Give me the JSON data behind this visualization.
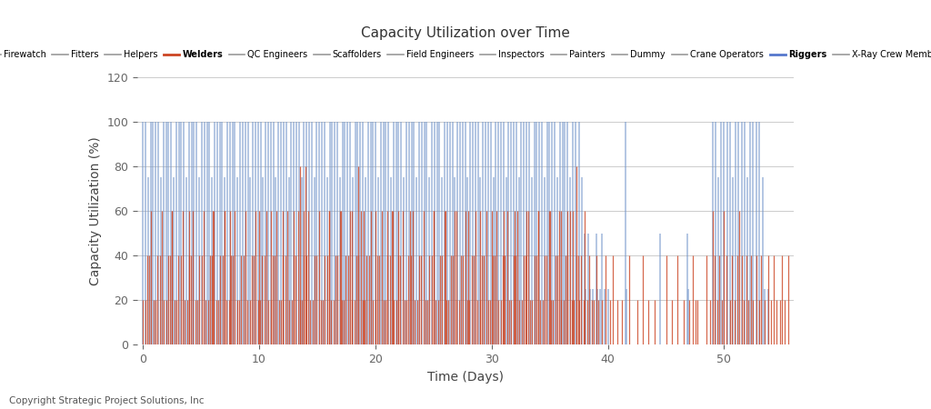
{
  "title": "Capacity Utilization over Time",
  "xlabel": "Time (Days)",
  "ylabel": "Capacity Utilization (%)",
  "ylim": [
    0,
    120
  ],
  "xlim": [
    -0.5,
    56
  ],
  "yticks": [
    0,
    20,
    40,
    60,
    80,
    100,
    120
  ],
  "copyright": "Copyright Strategic Project Solutions, Inc",
  "legend_entries": [
    {
      "label": "Firewatch",
      "color": "#999999",
      "bold": false
    },
    {
      "label": "Fitters",
      "color": "#999999",
      "bold": false
    },
    {
      "label": "Helpers",
      "color": "#999999",
      "bold": false
    },
    {
      "label": "Welders",
      "color": "#cc4422",
      "bold": true
    },
    {
      "label": "QC Engineers",
      "color": "#999999",
      "bold": false
    },
    {
      "label": "Scaffolders",
      "color": "#999999",
      "bold": false
    },
    {
      "label": "Field Engineers",
      "color": "#999999",
      "bold": false
    },
    {
      "label": "Inspectors",
      "color": "#999999",
      "bold": false
    },
    {
      "label": "Painters",
      "color": "#999999",
      "bold": false
    },
    {
      "label": "Dummy",
      "color": "#999999",
      "bold": false
    },
    {
      "label": "Crane Operators",
      "color": "#999999",
      "bold": false
    },
    {
      "label": "Riggers",
      "color": "#5577cc",
      "bold": true
    },
    {
      "label": "X-Ray Crew Members",
      "color": "#999999",
      "bold": false
    }
  ],
  "orange_color": "#cc4422",
  "blue_color": "#7799cc",
  "background_color": "#ffffff",
  "grid_color": "#cccccc"
}
